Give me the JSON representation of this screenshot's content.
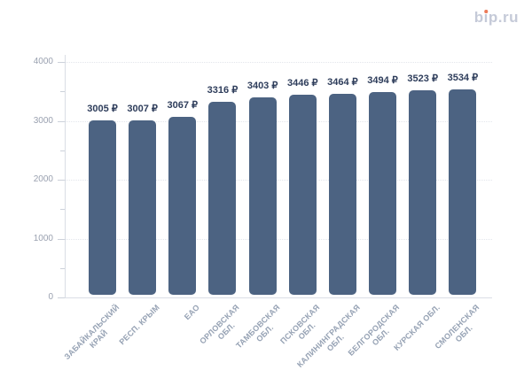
{
  "logo": {
    "text": "bip.ru",
    "text_color": "#c5cad8",
    "dot_color": "#ec7a58"
  },
  "chart_data": {
    "type": "bar",
    "title": "",
    "categories": [
      "ЗАБАЙКАЛЬСКИЙ КРАЙ",
      "РЕСП. КРЫМ",
      "ЕАО",
      "ОРЛОВСКАЯ ОБЛ.",
      "ТАМБОВСКАЯ ОБЛ.",
      "ПСКОВСКАЯ ОБЛ.",
      "КАЛИНИНГРАДСКАЯ ОБЛ.",
      "БЕЛГОРОДСКАЯ ОБЛ.",
      "КУРСКАЯ ОБЛ.",
      "СМОЛЕНСКАЯ ОБЛ."
    ],
    "category_label_lines": [
      [
        "ЗАБАЙКАЛЬСКИЙ",
        "КРАЙ"
      ],
      [
        "РЕСП. КРЫМ"
      ],
      [
        "ЕАО"
      ],
      [
        "ОРЛОВСКАЯ",
        "ОБЛ."
      ],
      [
        "ТАМБОВСКАЯ",
        "ОБЛ."
      ],
      [
        "ПСКОВСКАЯ",
        "ОБЛ."
      ],
      [
        "КАЛИНИНГРАДСКАЯ",
        "ОБЛ."
      ],
      [
        "БЕЛГОРОДСКАЯ",
        "ОБЛ."
      ],
      [
        "КУРСКАЯ ОБЛ."
      ],
      [
        "СМОЛЕНСКАЯ",
        "ОБЛ."
      ]
    ],
    "values": [
      3005,
      3007,
      3067,
      3316,
      3403,
      3446,
      3464,
      3494,
      3523,
      3534
    ],
    "value_suffix": " ₽",
    "y_ticks": [
      0,
      1000,
      2000,
      3000,
      4000
    ],
    "y_minor_tick_step": 500,
    "ylim": [
      0,
      4000
    ],
    "grid": true,
    "legend": false,
    "xlabel": "",
    "ylabel": "",
    "colors": {
      "bar": "#4c6382",
      "value_label": "#2e3d5b",
      "y_label": "#9aa1b0",
      "x_label": "#96a2b4",
      "grid": "#e3e6ec",
      "axis": "#dadee5",
      "tick": "#ccd1da",
      "background": "#ffffff"
    }
  }
}
